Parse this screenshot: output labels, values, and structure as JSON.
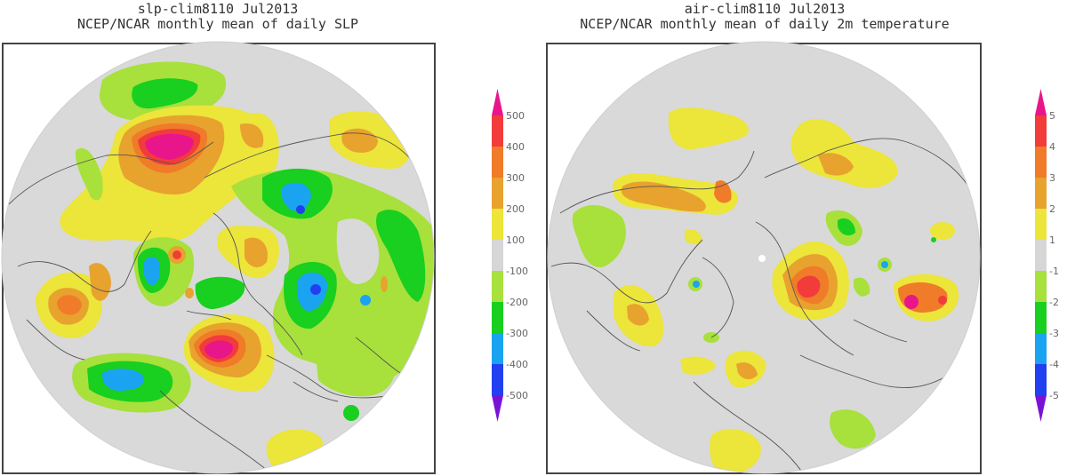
{
  "panels": [
    {
      "title_line1": "slp-clim8110 Jul2013",
      "title_line2": "NCEP/NCAR monthly mean of daily SLP",
      "variable": "sea level pressure anomaly",
      "colorbar": {
        "labels": [
          "500",
          "400",
          "300",
          "200",
          "100",
          "-100",
          "-200",
          "-300",
          "-400",
          "-500"
        ]
      }
    },
    {
      "title_line1": "air-clim8110 Jul2013",
      "title_line2": "NCEP/NCAR monthly mean of daily 2m temperature",
      "variable": "2m temperature anomaly",
      "colorbar": {
        "labels": [
          "5",
          "4",
          "3",
          "2",
          "1",
          "-1",
          "-2",
          "-3",
          "-4",
          "-5"
        ]
      }
    }
  ],
  "colors": {
    "scale": [
      "#e8168a",
      "#f23b3b",
      "#f07b28",
      "#e8a22e",
      "#ece53a",
      "#d6d6d6",
      "#a8e03c",
      "#19cf1f",
      "#1aa3f0",
      "#2340f0",
      "#7a12d6"
    ],
    "land_outline": "#555555",
    "ocean_fill": "#d9d9d9"
  }
}
